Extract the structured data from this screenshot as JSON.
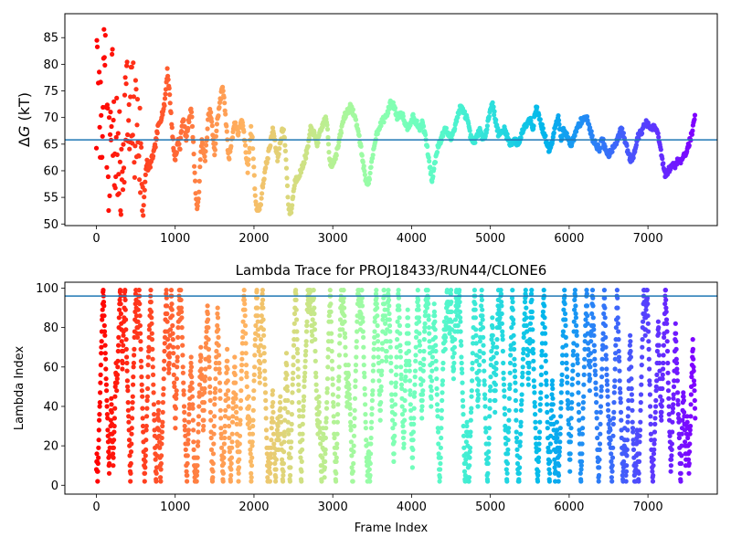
{
  "chart_data": [
    {
      "type": "scatter",
      "title": "",
      "xlabel": "",
      "ylabel_italic": "G",
      "ylabel_prefix": "Δ",
      "ylabel_suffix": " (kT)",
      "xlim": [
        -400,
        7880
      ],
      "ylim": [
        49.7,
        89.5
      ],
      "xticks": [
        0,
        1000,
        2000,
        3000,
        4000,
        5000,
        6000,
        7000
      ],
      "yticks": [
        50,
        55,
        60,
        65,
        70,
        75,
        80,
        85
      ],
      "hline": 65.8,
      "hline_color": "#1f77b4",
      "colormap": "rainbow",
      "color_axis": "x",
      "x_range": [
        0,
        7600
      ],
      "anchors": [
        [
          0,
          70
        ],
        [
          20,
          88
        ],
        [
          40,
          80
        ],
        [
          60,
          60
        ],
        [
          80,
          66
        ],
        [
          100,
          84
        ],
        [
          120,
          75
        ],
        [
          140,
          66
        ],
        [
          160,
          58
        ],
        [
          180,
          72
        ],
        [
          200,
          80
        ],
        [
          220,
          64
        ],
        [
          240,
          60
        ],
        [
          260,
          70
        ],
        [
          280,
          56
        ],
        [
          300,
          62
        ],
        [
          320,
          54
        ],
        [
          340,
          66
        ],
        [
          360,
          70
        ],
        [
          380,
          76
        ],
        [
          400,
          68
        ],
        [
          420,
          64
        ],
        [
          440,
          70
        ],
        [
          460,
          72
        ],
        [
          480,
          68
        ],
        [
          500,
          70
        ],
        [
          520,
          68
        ],
        [
          540,
          66
        ],
        [
          560,
          62
        ],
        [
          580,
          58
        ],
        [
          600,
          54
        ],
        [
          620,
          58
        ],
        [
          640,
          62
        ],
        [
          660,
          60
        ],
        [
          700,
          62
        ],
        [
          740,
          64
        ],
        [
          780,
          68
        ],
        [
          820,
          70
        ],
        [
          860,
          72
        ],
        [
          880,
          75
        ],
        [
          900,
          79
        ],
        [
          920,
          76
        ],
        [
          940,
          72
        ],
        [
          960,
          68
        ],
        [
          980,
          64
        ],
        [
          1000,
          62
        ],
        [
          1020,
          64
        ],
        [
          1040,
          66
        ],
        [
          1060,
          64
        ],
        [
          1080,
          68
        ],
        [
          1100,
          70
        ],
        [
          1120,
          68
        ],
        [
          1140,
          66
        ],
        [
          1160,
          68
        ],
        [
          1180,
          70
        ],
        [
          1200,
          72
        ],
        [
          1220,
          68
        ],
        [
          1240,
          62
        ],
        [
          1260,
          56
        ],
        [
          1280,
          52
        ],
        [
          1300,
          56
        ],
        [
          1320,
          62
        ],
        [
          1340,
          66
        ],
        [
          1360,
          64
        ],
        [
          1380,
          62
        ],
        [
          1400,
          66
        ],
        [
          1420,
          70
        ],
        [
          1440,
          71
        ],
        [
          1460,
          70
        ],
        [
          1480,
          66
        ],
        [
          1500,
          63
        ],
        [
          1520,
          67
        ],
        [
          1540,
          70
        ],
        [
          1560,
          72
        ],
        [
          1580,
          74
        ],
        [
          1600,
          76
        ],
        [
          1620,
          74
        ],
        [
          1640,
          70
        ],
        [
          1660,
          66
        ],
        [
          1680,
          62
        ],
        [
          1700,
          64
        ],
        [
          1720,
          66
        ],
        [
          1740,
          68
        ],
        [
          1760,
          69
        ],
        [
          1780,
          68
        ],
        [
          1800,
          67
        ],
        [
          1820,
          68
        ],
        [
          1840,
          70
        ],
        [
          1860,
          68
        ],
        [
          1880,
          66
        ],
        [
          1900,
          63
        ],
        [
          1920,
          60
        ],
        [
          1940,
          64
        ],
        [
          1960,
          68
        ],
        [
          1980,
          66
        ],
        [
          2000,
          60
        ],
        [
          2020,
          54
        ],
        [
          2040,
          53
        ],
        [
          2060,
          53
        ],
        [
          2080,
          53
        ],
        [
          2100,
          56
        ],
        [
          2140,
          60
        ],
        [
          2180,
          63
        ],
        [
          2220,
          66
        ],
        [
          2240,
          68
        ],
        [
          2260,
          66
        ],
        [
          2280,
          64
        ],
        [
          2300,
          62
        ],
        [
          2320,
          64
        ],
        [
          2340,
          66
        ],
        [
          2360,
          68
        ],
        [
          2380,
          67
        ],
        [
          2400,
          64
        ],
        [
          2420,
          58
        ],
        [
          2440,
          53
        ],
        [
          2460,
          52
        ],
        [
          2480,
          53
        ],
        [
          2500,
          56
        ],
        [
          2520,
          58
        ],
        [
          2560,
          59
        ],
        [
          2600,
          60
        ],
        [
          2640,
          62
        ],
        [
          2680,
          64
        ],
        [
          2700,
          66
        ],
        [
          2720,
          68
        ],
        [
          2760,
          67
        ],
        [
          2800,
          65
        ],
        [
          2840,
          67
        ],
        [
          2880,
          69
        ],
        [
          2920,
          70
        ],
        [
          2940,
          66
        ],
        [
          2960,
          62
        ],
        [
          2980,
          61
        ],
        [
          3020,
          62
        ],
        [
          3060,
          64
        ],
        [
          3100,
          67
        ],
        [
          3140,
          70
        ],
        [
          3180,
          71
        ],
        [
          3220,
          72
        ],
        [
          3260,
          71
        ],
        [
          3300,
          69
        ],
        [
          3340,
          66
        ],
        [
          3380,
          62
        ],
        [
          3420,
          58
        ],
        [
          3460,
          58
        ],
        [
          3500,
          62
        ],
        [
          3540,
          66
        ],
        [
          3580,
          68
        ],
        [
          3620,
          69
        ],
        [
          3660,
          70
        ],
        [
          3700,
          71
        ],
        [
          3740,
          73
        ],
        [
          3780,
          72
        ],
        [
          3820,
          70
        ],
        [
          3860,
          71
        ],
        [
          3900,
          70
        ],
        [
          3940,
          68
        ],
        [
          3980,
          69
        ],
        [
          4020,
          70
        ],
        [
          4060,
          69
        ],
        [
          4100,
          68
        ],
        [
          4140,
          69
        ],
        [
          4180,
          66
        ],
        [
          4220,
          62
        ],
        [
          4260,
          58
        ],
        [
          4300,
          62
        ],
        [
          4340,
          65
        ],
        [
          4380,
          66
        ],
        [
          4420,
          68
        ],
        [
          4460,
          67
        ],
        [
          4500,
          66
        ],
        [
          4540,
          68
        ],
        [
          4580,
          70
        ],
        [
          4620,
          72
        ],
        [
          4660,
          71
        ],
        [
          4700,
          70
        ],
        [
          4740,
          67
        ],
        [
          4780,
          65
        ],
        [
          4820,
          66
        ],
        [
          4860,
          68
        ],
        [
          4900,
          66
        ],
        [
          4940,
          67
        ],
        [
          4980,
          70
        ],
        [
          5020,
          73
        ],
        [
          5060,
          70
        ],
        [
          5100,
          67
        ],
        [
          5140,
          67
        ],
        [
          5180,
          68
        ],
        [
          5220,
          66
        ],
        [
          5260,
          65
        ],
        [
          5300,
          66
        ],
        [
          5340,
          65
        ],
        [
          5380,
          66
        ],
        [
          5420,
          68
        ],
        [
          5460,
          69
        ],
        [
          5500,
          70
        ],
        [
          5540,
          68
        ],
        [
          5580,
          72
        ],
        [
          5620,
          70
        ],
        [
          5660,
          68
        ],
        [
          5700,
          66
        ],
        [
          5740,
          64
        ],
        [
          5780,
          65
        ],
        [
          5820,
          68
        ],
        [
          5860,
          70
        ],
        [
          5900,
          66
        ],
        [
          5940,
          68
        ],
        [
          5980,
          66
        ],
        [
          6020,
          65
        ],
        [
          6060,
          66
        ],
        [
          6100,
          68
        ],
        [
          6140,
          69
        ],
        [
          6180,
          70
        ],
        [
          6220,
          70
        ],
        [
          6260,
          68
        ],
        [
          6300,
          66
        ],
        [
          6340,
          65
        ],
        [
          6380,
          64
        ],
        [
          6420,
          66
        ],
        [
          6460,
          64
        ],
        [
          6500,
          63
        ],
        [
          6540,
          64
        ],
        [
          6580,
          65
        ],
        [
          6620,
          66
        ],
        [
          6660,
          68
        ],
        [
          6700,
          66
        ],
        [
          6740,
          64
        ],
        [
          6780,
          62
        ],
        [
          6820,
          63
        ],
        [
          6860,
          66
        ],
        [
          6900,
          67
        ],
        [
          6940,
          68
        ],
        [
          6980,
          69
        ],
        [
          7020,
          68
        ],
        [
          7060,
          68
        ],
        [
          7100,
          68
        ],
        [
          7140,
          66
        ],
        [
          7180,
          62
        ],
        [
          7220,
          59
        ],
        [
          7260,
          60
        ],
        [
          7300,
          61
        ],
        [
          7340,
          61
        ],
        [
          7380,
          62
        ],
        [
          7420,
          62
        ],
        [
          7460,
          63
        ],
        [
          7500,
          64
        ],
        [
          7540,
          66
        ],
        [
          7570,
          68
        ],
        [
          7590,
          70
        ]
      ]
    },
    {
      "type": "scatter",
      "title": "Lambda Trace for PROJ18433/RUN44/CLONE6",
      "xlabel": "Frame Index",
      "ylabel": "Lambda Index",
      "xlim": [
        -400,
        7880
      ],
      "ylim": [
        -4.5,
        103
      ],
      "xticks": [
        0,
        1000,
        2000,
        3000,
        4000,
        5000,
        6000,
        7000
      ],
      "yticks": [
        0,
        20,
        40,
        60,
        80,
        100
      ],
      "hline": 96,
      "hline_color": "#1f77b4",
      "colormap": "rainbow",
      "color_axis": "x",
      "x_range": [
        0,
        7600
      ],
      "value_range": [
        0,
        99
      ],
      "frames_shown": 7600,
      "sweep_period_frames": 110
    }
  ]
}
